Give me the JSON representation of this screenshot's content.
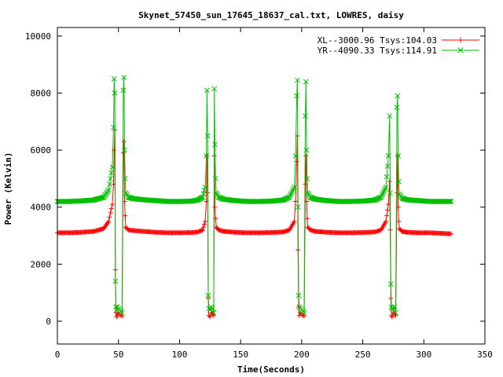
{
  "chart_data": {
    "type": "line",
    "title": "Skynet_57450_sun_17645_18637_cal.txt, LOWRES, daisy",
    "xlabel": "Time(Seconds)",
    "ylabel": "Power (Kelvin)",
    "xlim": [
      0,
      350
    ],
    "ylim": [
      -800,
      10300
    ],
    "xticks": [
      "0",
      "50",
      "100",
      "150",
      "200",
      "250",
      "300",
      "350"
    ],
    "yticks": [
      "0",
      "2000",
      "4000",
      "6000",
      "8000",
      "10000"
    ],
    "grid": false,
    "legend_position": "top-right",
    "series": [
      {
        "name": "XL--3000.96 Tsys:104.03",
        "color": "#ff0000",
        "marker": "plus",
        "baseline": 3100,
        "x": [
          0,
          10,
          20,
          30,
          38,
          42,
          45,
          46,
          46.5,
          47,
          47.5,
          48,
          48.5,
          49,
          50,
          51,
          52,
          53,
          54,
          54.5,
          55,
          55.5,
          56,
          58,
          62,
          70,
          80,
          90,
          100,
          110,
          115,
          119,
          121,
          122,
          122.5,
          123,
          123.5,
          124,
          125,
          126,
          127,
          128,
          128.5,
          129,
          129.5,
          130,
          132,
          136,
          145,
          155,
          165,
          175,
          185,
          190,
          194,
          195,
          196,
          196.5,
          197,
          197.5,
          198,
          199,
          200,
          201,
          202,
          203,
          203.5,
          204,
          204.5,
          205,
          207,
          211,
          220,
          230,
          240,
          250,
          260,
          265,
          269,
          271,
          272,
          272.5,
          273,
          273.5,
          274,
          275,
          276,
          277,
          278,
          278.5,
          279,
          279.5,
          280,
          282,
          286,
          295,
          305,
          315,
          323
        ],
        "y": [
          3100,
          3100,
          3120,
          3150,
          3250,
          3500,
          4100,
          4800,
          6000,
          6700,
          1800,
          300,
          150,
          200,
          300,
          250,
          200,
          180,
          5900,
          6300,
          4200,
          3700,
          3300,
          3200,
          3180,
          3150,
          3120,
          3100,
          3100,
          3110,
          3130,
          3200,
          3500,
          4200,
          5800,
          4500,
          800,
          200,
          150,
          300,
          250,
          200,
          5800,
          4000,
          3600,
          3300,
          3200,
          3150,
          3120,
          3100,
          3100,
          3110,
          3130,
          3200,
          3500,
          4200,
          5600,
          6500,
          2500,
          500,
          200,
          300,
          250,
          200,
          180,
          4800,
          5800,
          4200,
          3600,
          3300,
          3200,
          3150,
          3120,
          3100,
          3100,
          3110,
          3130,
          3200,
          3500,
          4100,
          4900,
          3200,
          800,
          200,
          150,
          300,
          250,
          200,
          4500,
          5800,
          4000,
          3500,
          3250,
          3150,
          3120,
          3100,
          3100,
          3080,
          3060
        ]
      },
      {
        "name": "YR--4090.33 Tsys:114.91",
        "color": "#00c000",
        "marker": "x",
        "baseline": 4200,
        "x": [
          0,
          10,
          20,
          30,
          38,
          42,
          45,
          46,
          46.5,
          47,
          47.5,
          48,
          48.5,
          49,
          50,
          51,
          52,
          53,
          54,
          54.5,
          55,
          55.5,
          56,
          58,
          62,
          70,
          80,
          90,
          100,
          110,
          115,
          119,
          121,
          122,
          122.5,
          123,
          123.5,
          124,
          125,
          126,
          127,
          128,
          128.5,
          129,
          129.5,
          130,
          132,
          136,
          145,
          155,
          165,
          175,
          185,
          190,
          194,
          195,
          196,
          196.5,
          197,
          197.5,
          198,
          199,
          200,
          201,
          202,
          203,
          203.5,
          204,
          204.5,
          205,
          207,
          211,
          220,
          230,
          240,
          250,
          260,
          265,
          269,
          271,
          272,
          272.5,
          273,
          273.5,
          274,
          275,
          276,
          277,
          278,
          278.5,
          279,
          279.5,
          280,
          282,
          286,
          295,
          305,
          315,
          323
        ],
        "y": [
          4200,
          4200,
          4220,
          4250,
          4350,
          4600,
          5400,
          6800,
          8500,
          8000,
          1400,
          500,
          400,
          500,
          450,
          400,
          350,
          300,
          8100,
          8550,
          6000,
          5000,
          4500,
          4350,
          4300,
          4260,
          4230,
          4200,
          4200,
          4210,
          4250,
          4350,
          4700,
          5800,
          8100,
          6500,
          900,
          450,
          400,
          500,
          450,
          300,
          8150,
          6200,
          5000,
          4500,
          4350,
          4280,
          4230,
          4200,
          4200,
          4210,
          4250,
          4350,
          4700,
          5800,
          7900,
          8450,
          4000,
          900,
          500,
          450,
          400,
          350,
          300,
          7200,
          8400,
          6000,
          5000,
          4500,
          4350,
          4280,
          4230,
          4200,
          4200,
          4210,
          4250,
          4350,
          4700,
          5800,
          7200,
          4500,
          1300,
          500,
          450,
          400,
          500,
          300,
          7500,
          7900,
          5800,
          4900,
          4450,
          4320,
          4260,
          4230,
          4200,
          4200,
          4200
        ]
      }
    ]
  }
}
